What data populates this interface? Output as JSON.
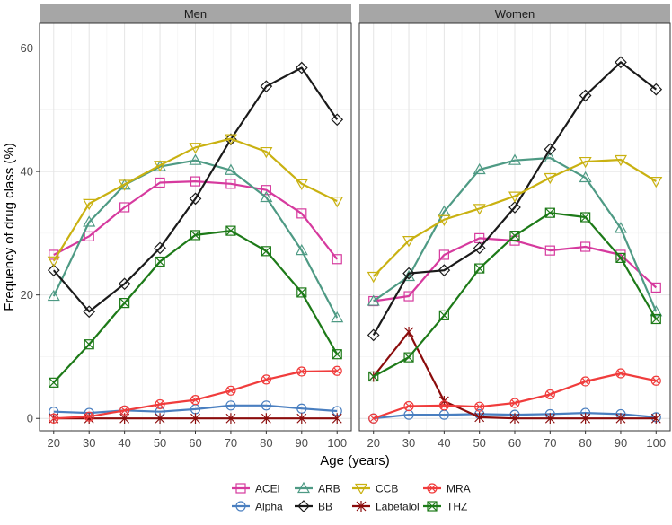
{
  "chart_data": {
    "type": "line",
    "facets": [
      "Men",
      "Women"
    ],
    "x": [
      20,
      30,
      40,
      50,
      60,
      70,
      80,
      90,
      100
    ],
    "xlabel": "Age (years)",
    "ylabel": "Frequency of drug class (%)",
    "xlim": [
      16,
      104
    ],
    "ylim": [
      -2,
      64
    ],
    "x_ticks": [
      20,
      30,
      40,
      50,
      60,
      70,
      80,
      90,
      100
    ],
    "y_ticks": [
      0,
      20,
      40,
      60
    ],
    "grid": true,
    "legend_position": "bottom",
    "series": [
      {
        "name": "ACEi",
        "color": "#d63a9e",
        "marker": "square",
        "Men": [
          26.5,
          29.5,
          34.2,
          38.2,
          38.4,
          38.0,
          37.0,
          33.2,
          25.8
        ],
        "Women": [
          19.0,
          19.8,
          26.5,
          29.2,
          28.8,
          27.2,
          27.8,
          26.5,
          21.2
        ]
      },
      {
        "name": "Alpha",
        "color": "#4a7fc0",
        "marker": "circle",
        "Men": [
          1.1,
          0.9,
          1.3,
          1.1,
          1.5,
          2.1,
          2.1,
          1.6,
          1.2
        ],
        "Women": [
          0.0,
          0.6,
          0.6,
          0.7,
          0.6,
          0.7,
          0.9,
          0.7,
          0.2
        ]
      },
      {
        "name": "ARB",
        "color": "#4e9a84",
        "marker": "triangle",
        "Men": [
          19.8,
          31.8,
          37.8,
          40.8,
          41.8,
          40.2,
          35.8,
          27.2,
          16.3
        ],
        "Women": [
          19.0,
          23.0,
          33.5,
          40.3,
          41.8,
          42.2,
          39.0,
          30.8,
          17.3
        ]
      },
      {
        "name": "BB",
        "color": "#1a1a1a",
        "marker": "diamond",
        "Men": [
          24.0,
          17.3,
          21.8,
          27.6,
          35.6,
          45.2,
          53.8,
          56.8,
          48.4
        ],
        "Women": [
          13.5,
          23.5,
          24.0,
          27.6,
          34.2,
          43.6,
          52.3,
          57.7,
          53.3
        ]
      },
      {
        "name": "CCB",
        "color": "#c9b111",
        "marker": "triangle-down",
        "Men": [
          25.5,
          34.8,
          37.9,
          41.0,
          43.9,
          45.3,
          43.2,
          38.0,
          35.2
        ],
        "Women": [
          23.0,
          28.8,
          32.2,
          34.0,
          36.0,
          39.0,
          41.6,
          41.9,
          38.4
        ]
      },
      {
        "name": "Labetalol",
        "color": "#8b0c0c",
        "marker": "star",
        "Men": [
          0.0,
          0.0,
          0.0,
          0.0,
          0.0,
          0.0,
          0.0,
          0.0,
          0.0
        ],
        "Women": [
          6.8,
          14.0,
          2.8,
          0.2,
          0.0,
          0.0,
          0.0,
          0.0,
          0.0
        ]
      },
      {
        "name": "MRA",
        "color": "#f03c3c",
        "marker": "circle-cross",
        "Men": [
          0.0,
          0.3,
          1.3,
          2.3,
          3.0,
          4.5,
          6.3,
          7.6,
          7.7
        ],
        "Women": [
          0.0,
          2.0,
          2.1,
          1.9,
          2.5,
          3.9,
          6.0,
          7.3,
          6.1
        ]
      },
      {
        "name": "THZ",
        "color": "#1d7a18",
        "marker": "square-cross",
        "Men": [
          5.8,
          12.0,
          18.7,
          25.4,
          29.7,
          30.4,
          27.1,
          20.4,
          10.4
        ],
        "Women": [
          6.8,
          9.9,
          16.7,
          24.3,
          29.6,
          33.3,
          32.6,
          26.0,
          16.1
        ]
      }
    ]
  }
}
